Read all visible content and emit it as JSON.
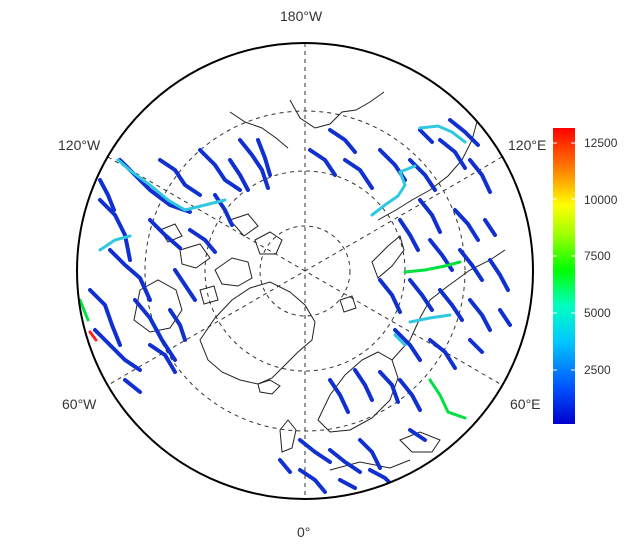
{
  "map": {
    "projection": "north-polar-stereographic",
    "graticule_style": "dashed",
    "longitude_labels": {
      "top": "180°W",
      "bottom": "0°",
      "upper_left": "120°W",
      "upper_right": "120°E",
      "lower_left": "60°W",
      "lower_right": "60°E"
    }
  },
  "legend": {
    "type": "continuous-colorbar",
    "palette": [
      "#0000ff",
      "#00ffff",
      "#00ff00",
      "#ffff00",
      "#ff0000"
    ],
    "min": 0,
    "max": 13000,
    "ticks": [
      "2500",
      "5000",
      "7500",
      "10000",
      "12500"
    ]
  },
  "rivers": {
    "description_levels": "colored by flow magnitude",
    "dominant_color": "#1030d0",
    "highlight_colors": [
      "#30c8e0",
      "#00e040",
      "#ff2020"
    ]
  }
}
